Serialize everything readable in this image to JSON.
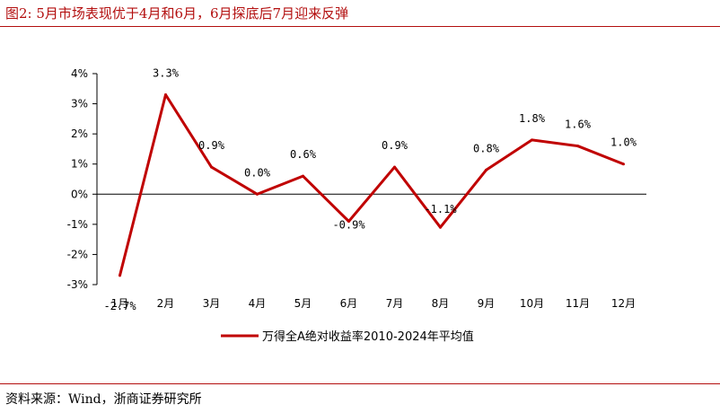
{
  "header": {
    "title": "图2:  5月市场表现优于4月和6月，6月探底后7月迎来反弹"
  },
  "footer": {
    "source": "资料来源：Wind，浙商证券研究所"
  },
  "colors": {
    "accent": "#b30f0f",
    "series": "#c00000",
    "axis": "#000000"
  },
  "chart_data": {
    "type": "line",
    "categories": [
      "1月",
      "2月",
      "3月",
      "4月",
      "5月",
      "6月",
      "7月",
      "8月",
      "9月",
      "10月",
      "11月",
      "12月"
    ],
    "series": [
      {
        "name": "万得全A绝对收益率2010-2024年平均值",
        "values": [
          -2.7,
          3.3,
          0.9,
          0.0,
          0.6,
          -0.9,
          0.9,
          -1.1,
          0.8,
          1.8,
          1.6,
          1.0
        ],
        "data_labels": [
          "-2.7%",
          "3.3%",
          "0.9%",
          "0.0%",
          "0.6%",
          "-0.9%",
          "0.9%",
          "-1.1%",
          "0.8%",
          "1.8%",
          "1.6%",
          "1.0%"
        ]
      }
    ],
    "y_ticks": [
      4,
      3,
      2,
      1,
      0,
      -1,
      -2,
      -3
    ],
    "y_tick_labels": [
      "4%",
      "3%",
      "2%",
      "1%",
      "0%",
      "-1%",
      "-2%",
      "-3%"
    ],
    "ylim": [
      -3,
      4
    ],
    "grid": false,
    "legend_position": "bottom"
  }
}
